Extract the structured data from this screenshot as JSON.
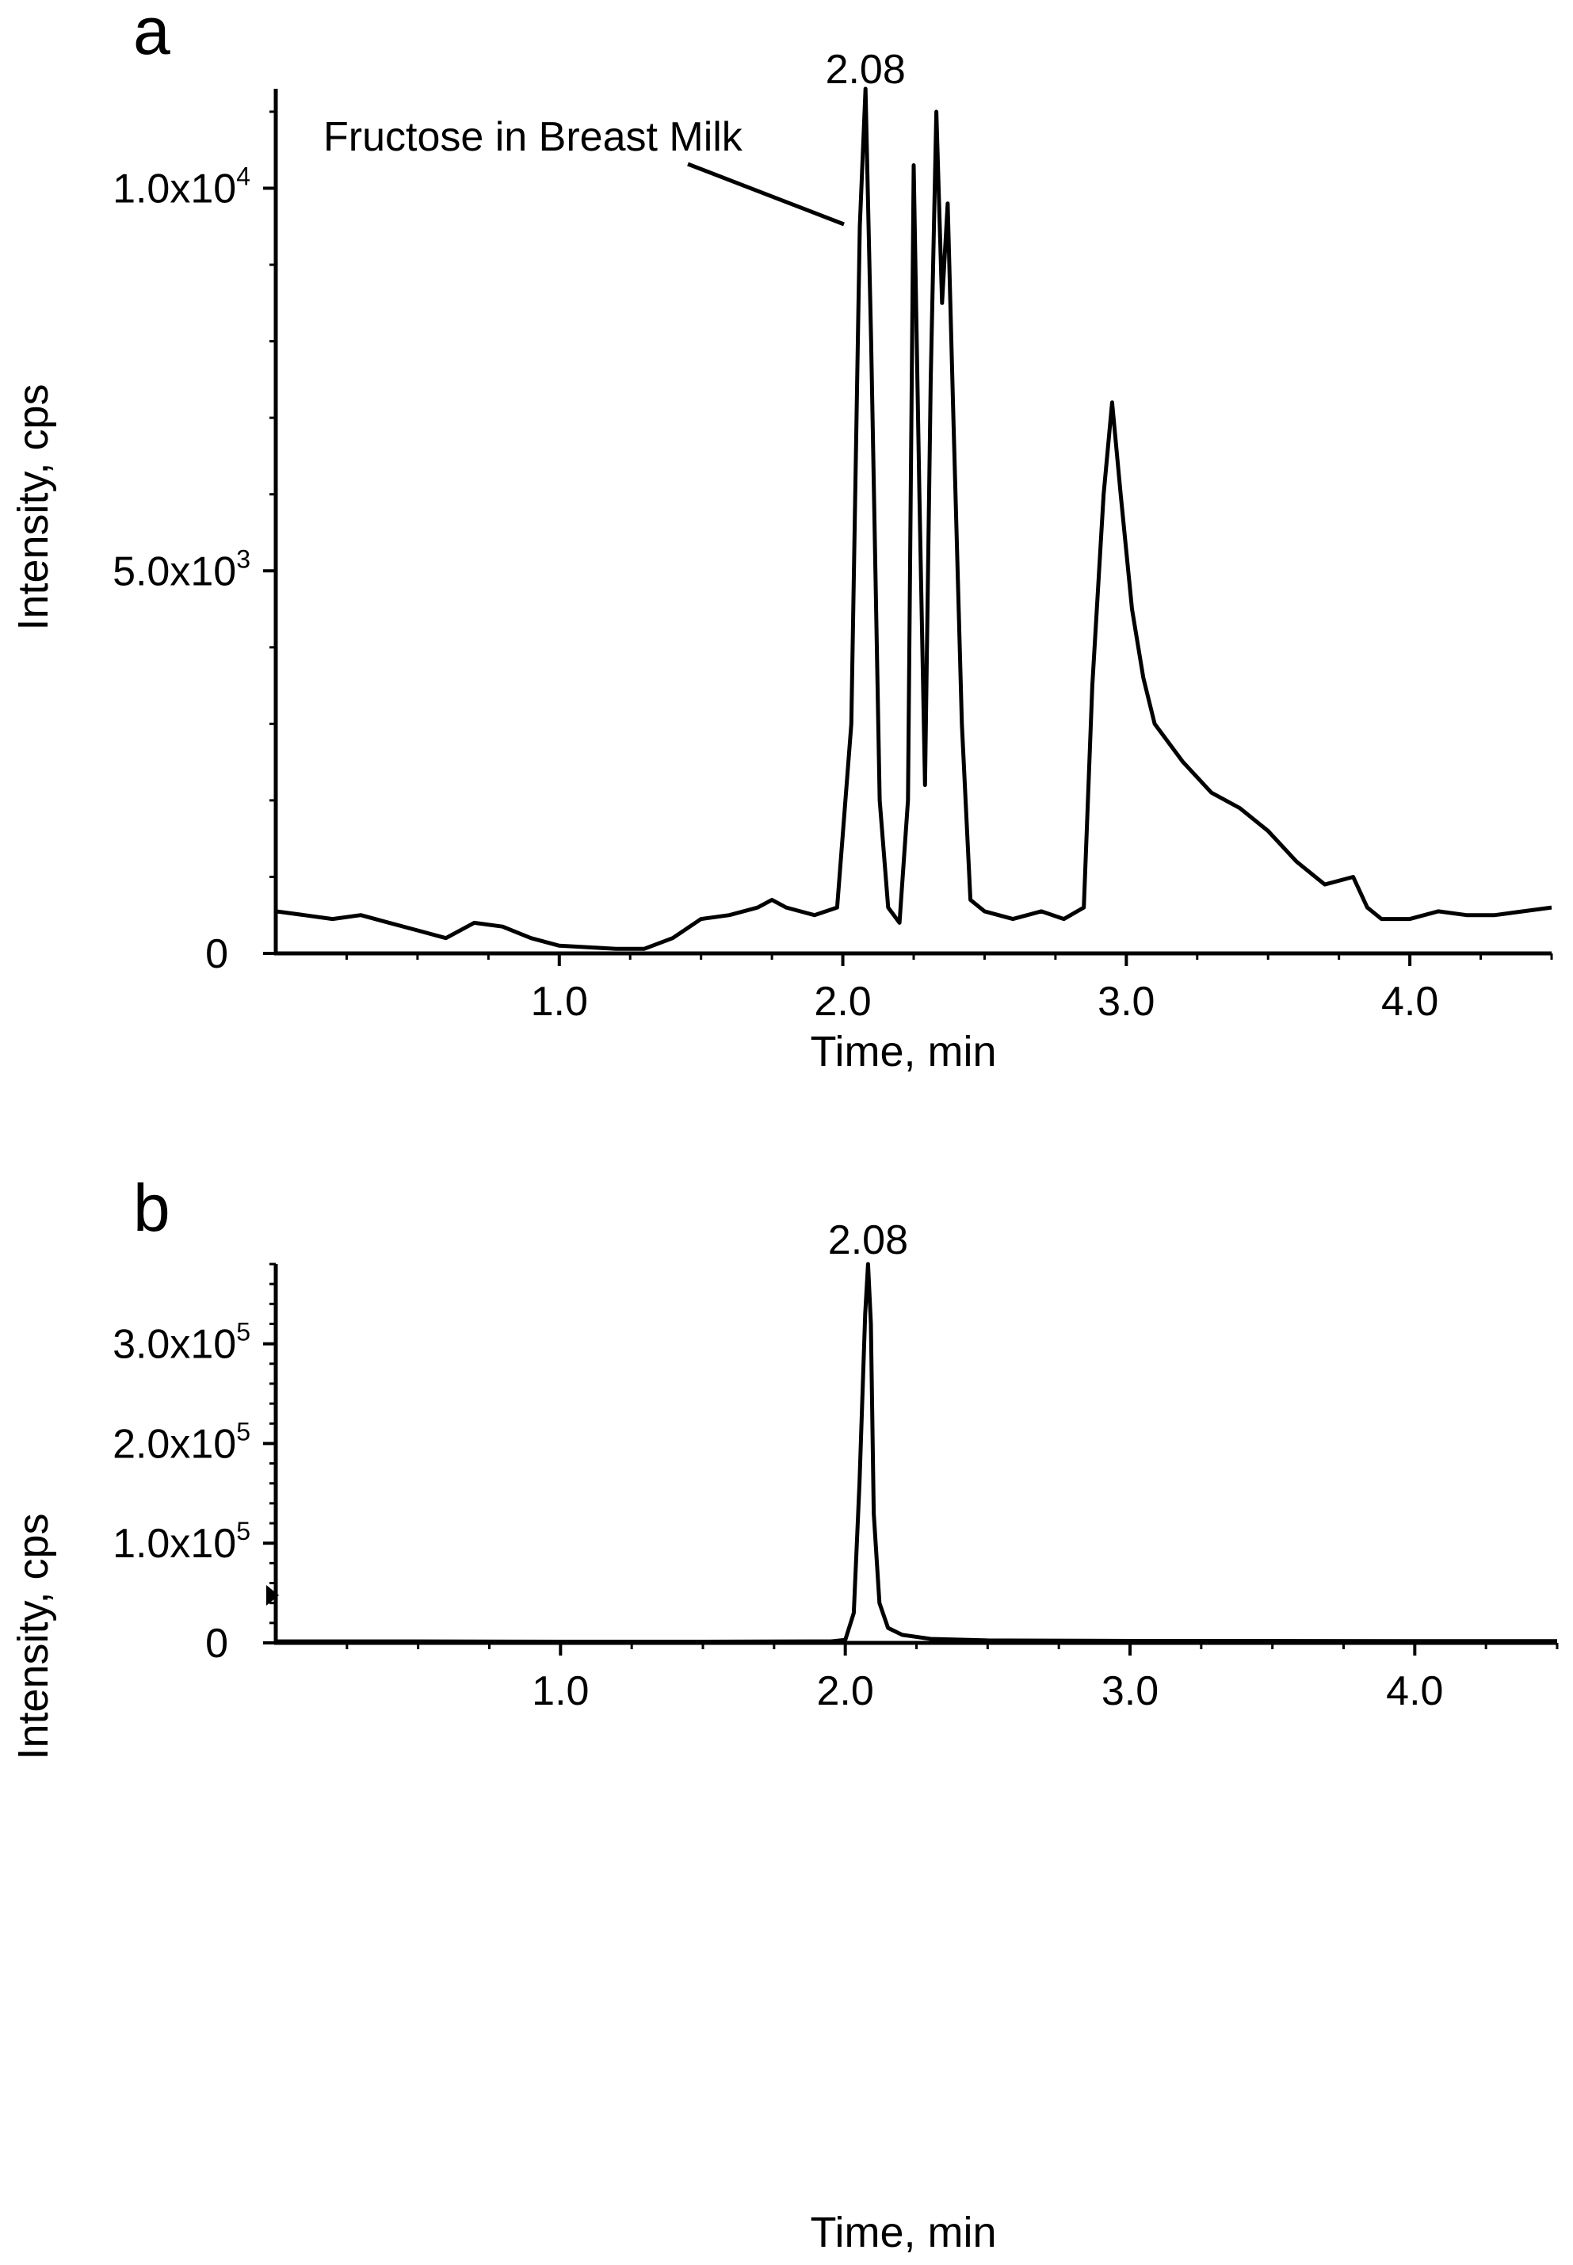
{
  "chart_data": [
    {
      "type": "line",
      "panel_label": "a",
      "xlabel": "Time, min",
      "ylabel": "Intensity, cps",
      "xlim": [
        0,
        4.5
      ],
      "ylim": [
        0,
        11300
      ],
      "x_ticks": [
        {
          "value": 1.0,
          "label": "1.0"
        },
        {
          "value": 2.0,
          "label": "2.0"
        },
        {
          "value": 3.0,
          "label": "3.0"
        },
        {
          "value": 4.0,
          "label": "4.0"
        }
      ],
      "y_ticks": [
        {
          "value": 0,
          "mantissa": "0",
          "exponent": ""
        },
        {
          "value": 5000,
          "mantissa": "5.0x10",
          "exponent": "3"
        },
        {
          "value": 10000,
          "mantissa": "1.0x10",
          "exponent": "4"
        }
      ],
      "peak_label": {
        "text": "2.08",
        "x": 2.08,
        "y": 11300
      },
      "annotation": {
        "text": "Fructose in Breast Milk",
        "points_to_x": 2.0,
        "points_to_y": 9600
      },
      "x": [
        0.0,
        0.1,
        0.2,
        0.3,
        0.4,
        0.5,
        0.6,
        0.7,
        0.8,
        0.9,
        1.0,
        1.1,
        1.2,
        1.3,
        1.4,
        1.5,
        1.6,
        1.7,
        1.75,
        1.8,
        1.9,
        1.98,
        2.03,
        2.06,
        2.08,
        2.1,
        2.13,
        2.16,
        2.2,
        2.23,
        2.25,
        2.27,
        2.29,
        2.31,
        2.33,
        2.35,
        2.37,
        2.39,
        2.42,
        2.45,
        2.5,
        2.6,
        2.7,
        2.78,
        2.85,
        2.88,
        2.92,
        2.95,
        2.98,
        3.02,
        3.06,
        3.1,
        3.2,
        3.3,
        3.4,
        3.5,
        3.6,
        3.7,
        3.8,
        3.85,
        3.9,
        4.0,
        4.1,
        4.2,
        4.3,
        4.4,
        4.5
      ],
      "y": [
        550,
        500,
        450,
        500,
        400,
        300,
        200,
        400,
        350,
        200,
        100,
        80,
        60,
        60,
        200,
        450,
        500,
        600,
        700,
        600,
        500,
        600,
        3000,
        9500,
        11300,
        8000,
        2000,
        600,
        400,
        2000,
        10300,
        6000,
        2200,
        7500,
        11000,
        8500,
        9800,
        7000,
        3000,
        700,
        550,
        450,
        550,
        450,
        600,
        3500,
        6000,
        7200,
        6000,
        4500,
        3600,
        3000,
        2500,
        2100,
        1900,
        1600,
        1200,
        900,
        1000,
        600,
        450,
        450,
        550,
        500,
        500,
        550,
        600
      ]
    },
    {
      "type": "line",
      "panel_label": "b",
      "xlabel": "Time, min",
      "ylabel": "Intensity, cps",
      "xlim": [
        0,
        4.5
      ],
      "ylim": [
        0,
        380000
      ],
      "x_ticks": [
        {
          "value": 1.0,
          "label": "1.0"
        },
        {
          "value": 2.0,
          "label": "2.0"
        },
        {
          "value": 3.0,
          "label": "3.0"
        },
        {
          "value": 4.0,
          "label": "4.0"
        }
      ],
      "y_ticks": [
        {
          "value": 0,
          "mantissa": "0",
          "exponent": ""
        },
        {
          "value": 100000,
          "mantissa": "1.0x10",
          "exponent": "5"
        },
        {
          "value": 200000,
          "mantissa": "2.0x10",
          "exponent": "5"
        },
        {
          "value": 300000,
          "mantissa": "3.0x10",
          "exponent": "5"
        }
      ],
      "peak_label": {
        "text": "2.08",
        "x": 2.08,
        "y": 380000
      },
      "x": [
        0.0,
        0.5,
        1.0,
        1.5,
        1.95,
        2.0,
        2.03,
        2.05,
        2.07,
        2.08,
        2.09,
        2.1,
        2.12,
        2.15,
        2.2,
        2.3,
        2.5,
        3.0,
        4.0,
        4.5
      ],
      "y": [
        1500,
        1500,
        1200,
        1200,
        1500,
        3000,
        30000,
        160000,
        330000,
        380000,
        320000,
        130000,
        40000,
        15000,
        8000,
        4000,
        2500,
        2000,
        1800,
        1800
      ]
    }
  ]
}
